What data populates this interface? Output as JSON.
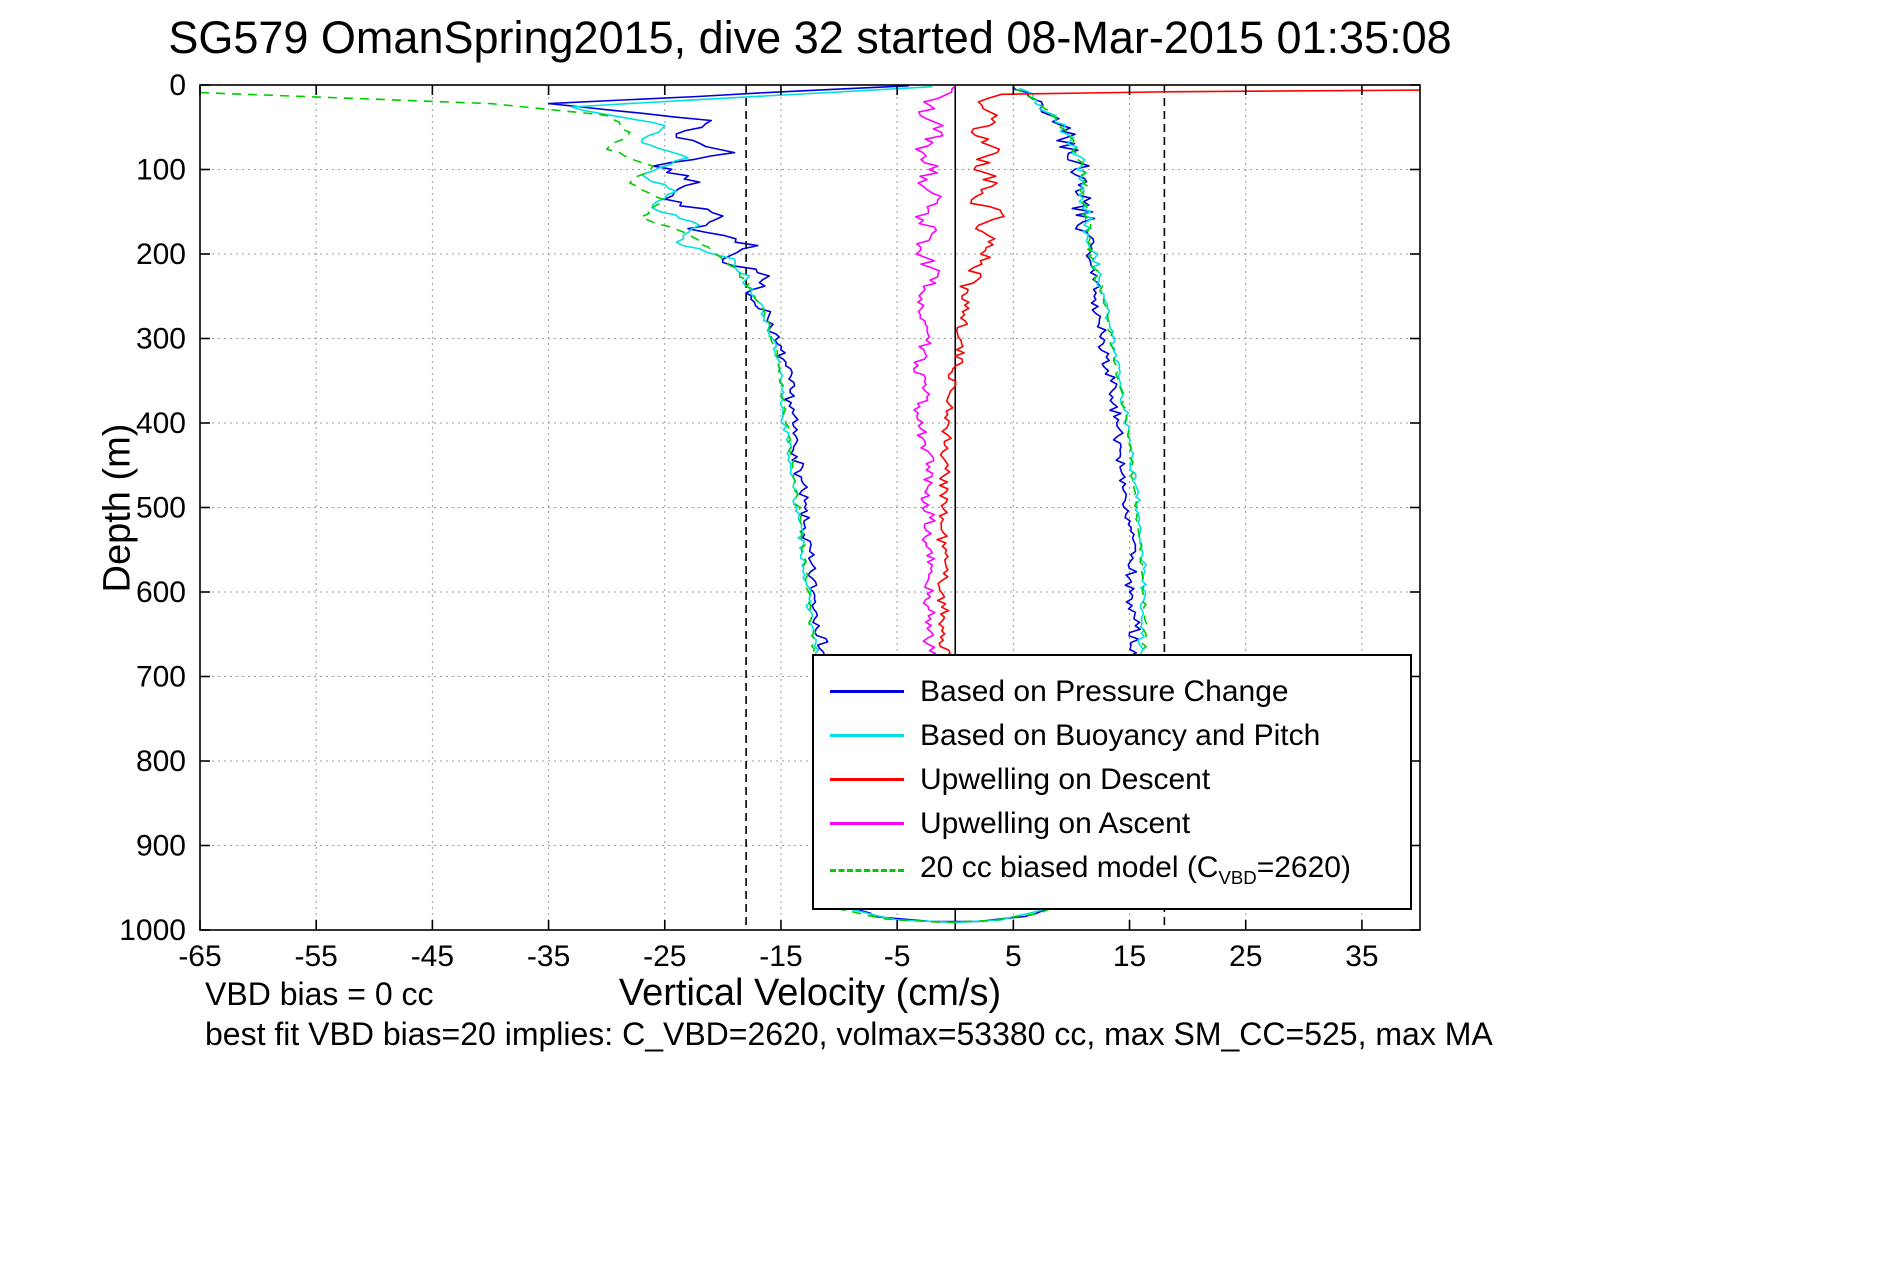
{
  "annotations": {
    "vbd_bias": "VBD bias = 0 cc",
    "best_fit": "best fit VBD bias=20 implies: C_VBD=2620, volmax=53380 cc, max SM_CC=525, max MA"
  },
  "chart_data": {
    "type": "line",
    "title": "SG579 OmanSpring2015, dive 32 started 08-Mar-2015 01:35:08",
    "xlabel": "Vertical Velocity (cm/s)",
    "ylabel": "Depth (m)",
    "xlim": [
      -65,
      40
    ],
    "ylim": [
      0,
      1000
    ],
    "y_inverted": true,
    "grid": "dotted",
    "xticks": [
      -65,
      -55,
      -45,
      -35,
      -25,
      -15,
      -5,
      5,
      15,
      25,
      35
    ],
    "yticks": [
      0,
      100,
      200,
      300,
      400,
      500,
      600,
      700,
      800,
      900,
      1000
    ],
    "ref_lines": [
      {
        "x": -18,
        "style": "dashed"
      },
      {
        "x": 0,
        "style": "solid"
      },
      {
        "x": 18,
        "style": "dashed"
      }
    ],
    "series": [
      {
        "id": "pressure",
        "name": "Based on Pressure Change",
        "color": "#0000dd",
        "dash": false,
        "jitter": 1.0,
        "seed": 7,
        "path": [
          [
            -4,
            1
          ],
          [
            -35,
            22
          ],
          [
            -21,
            42
          ],
          [
            -24,
            62
          ],
          [
            -19,
            80
          ],
          [
            -26,
            96
          ],
          [
            -22,
            115
          ],
          [
            -25,
            135
          ],
          [
            -20,
            155
          ],
          [
            -23,
            170
          ],
          [
            -17,
            190
          ],
          [
            -20,
            206
          ],
          [
            -16,
            226
          ],
          [
            -18,
            246
          ],
          [
            -16,
            272
          ],
          [
            -15.5,
            302
          ],
          [
            -14.6,
            332
          ],
          [
            -14.2,
            364
          ],
          [
            -14,
            400
          ],
          [
            -13.6,
            440
          ],
          [
            -13.2,
            480
          ],
          [
            -13,
            520
          ],
          [
            -12.6,
            560
          ],
          [
            -12.2,
            600
          ],
          [
            -11.7,
            640
          ],
          [
            -11.2,
            678
          ],
          [
            -10.9,
            800
          ],
          [
            -10.5,
            930
          ],
          [
            -10,
            964
          ],
          [
            -7,
            984
          ],
          [
            -2,
            990
          ],
          [
            2,
            990
          ],
          [
            6,
            984
          ],
          [
            10,
            966
          ],
          [
            12,
            944
          ],
          [
            13.5,
            900
          ],
          [
            14.8,
            810
          ],
          [
            15.4,
            720
          ],
          [
            15.3,
            680
          ],
          [
            15.5,
            640
          ],
          [
            15,
            600
          ],
          [
            15.3,
            560
          ],
          [
            14.9,
            520
          ],
          [
            14.5,
            480
          ],
          [
            14.2,
            440
          ],
          [
            13.9,
            400
          ],
          [
            13.5,
            362
          ],
          [
            13,
            322
          ],
          [
            12.4,
            282
          ],
          [
            11.9,
            242
          ],
          [
            11.3,
            202
          ],
          [
            11,
            162
          ],
          [
            11,
            122
          ],
          [
            10.6,
            92
          ],
          [
            9.6,
            62
          ],
          [
            8.2,
            36
          ],
          [
            6.6,
            16
          ],
          [
            5,
            2
          ]
        ]
      },
      {
        "id": "buoyancy",
        "name": "Based on Buoyancy and Pitch",
        "color": "#00e0e0",
        "dash": false,
        "jitter": 0.55,
        "seed": 13,
        "path": [
          [
            -2,
            2
          ],
          [
            -33,
            26
          ],
          [
            -25,
            48
          ],
          [
            -27,
            68
          ],
          [
            -23,
            86
          ],
          [
            -27,
            106
          ],
          [
            -24,
            126
          ],
          [
            -26,
            146
          ],
          [
            -22,
            166
          ],
          [
            -24,
            186
          ],
          [
            -19,
            206
          ],
          [
            -18,
            230
          ],
          [
            -17,
            256
          ],
          [
            -16,
            286
          ],
          [
            -15.5,
            316
          ],
          [
            -15,
            352
          ],
          [
            -14.8,
            392
          ],
          [
            -14.3,
            432
          ],
          [
            -13.9,
            472
          ],
          [
            -13.5,
            512
          ],
          [
            -13.1,
            552
          ],
          [
            -12.8,
            592
          ],
          [
            -12.4,
            632
          ],
          [
            -12,
            672
          ],
          [
            -11.8,
            800
          ],
          [
            -11.2,
            938
          ],
          [
            -10,
            972
          ],
          [
            -5,
            988
          ],
          [
            0,
            991
          ],
          [
            4,
            988
          ],
          [
            8,
            974
          ],
          [
            11,
            954
          ],
          [
            13,
            914
          ],
          [
            14.8,
            830
          ],
          [
            15.8,
            722
          ],
          [
            16,
            672
          ],
          [
            16.1,
            622
          ],
          [
            16.2,
            572
          ],
          [
            15.9,
            522
          ],
          [
            15.5,
            472
          ],
          [
            15.1,
            432
          ],
          [
            14.7,
            392
          ],
          [
            14.2,
            352
          ],
          [
            13.7,
            312
          ],
          [
            13.1,
            272
          ],
          [
            12.4,
            232
          ],
          [
            11.7,
            196
          ],
          [
            11.3,
            162
          ],
          [
            11.1,
            126
          ],
          [
            10.9,
            96
          ],
          [
            9.9,
            66
          ],
          [
            8.6,
            40
          ],
          [
            7,
            18
          ],
          [
            5.5,
            4
          ]
        ]
      },
      {
        "id": "descent-upwelling",
        "name": "Upwelling on Descent",
        "color": "#ff0000",
        "dash": false,
        "jitter": 1.0,
        "seed": 21,
        "path": [
          [
            40,
            6
          ],
          [
            18,
            8
          ],
          [
            4,
            11
          ],
          [
            2,
            20
          ],
          [
            3.6,
            36
          ],
          [
            1.4,
            56
          ],
          [
            3.8,
            76
          ],
          [
            1.8,
            96
          ],
          [
            3.6,
            116
          ],
          [
            1.4,
            136
          ],
          [
            4,
            152
          ],
          [
            2,
            166
          ],
          [
            3.4,
            182
          ],
          [
            2.6,
            196
          ],
          [
            1.6,
            216
          ],
          [
            1.1,
            242
          ],
          [
            0.8,
            272
          ],
          [
            0.5,
            302
          ],
          [
            0.1,
            332
          ],
          [
            -0.4,
            362
          ],
          [
            -0.6,
            402
          ],
          [
            -1,
            442
          ],
          [
            -0.8,
            482
          ],
          [
            -1.2,
            522
          ],
          [
            -0.9,
            562
          ],
          [
            -1.1,
            602
          ],
          [
            -1,
            642
          ],
          [
            -0.9,
            680
          ]
        ]
      },
      {
        "id": "ascent-upwelling",
        "name": "Upwelling on Ascent",
        "color": "#ff00ff",
        "dash": false,
        "jitter": 1.0,
        "seed": 33,
        "path": [
          [
            0,
            1
          ],
          [
            -1.5,
            16
          ],
          [
            -3,
            36
          ],
          [
            -1.2,
            56
          ],
          [
            -3.4,
            76
          ],
          [
            -1.5,
            96
          ],
          [
            -3.2,
            116
          ],
          [
            -1.5,
            136
          ],
          [
            -3.4,
            156
          ],
          [
            -2,
            176
          ],
          [
            -3,
            196
          ],
          [
            -2.1,
            216
          ],
          [
            -2.6,
            242
          ],
          [
            -3,
            272
          ],
          [
            -2.5,
            302
          ],
          [
            -3.2,
            332
          ],
          [
            -2.6,
            362
          ],
          [
            -3.3,
            392
          ],
          [
            -2.6,
            422
          ],
          [
            -2.2,
            452
          ],
          [
            -2.6,
            482
          ],
          [
            -2.2,
            512
          ],
          [
            -2.5,
            542
          ],
          [
            -2.1,
            572
          ],
          [
            -2.4,
            602
          ],
          [
            -2.1,
            632
          ],
          [
            -2.3,
            662
          ],
          [
            -2.1,
            680
          ]
        ]
      },
      {
        "id": "model",
        "name": "20 cc biased model (C_VBD=2620)",
        "color": "#00cc00",
        "dash": true,
        "jitter": 0.4,
        "seed": 41,
        "path": [
          [
            -65,
            9
          ],
          [
            -40,
            22
          ],
          [
            -30,
            36
          ],
          [
            -28,
            56
          ],
          [
            -30,
            76
          ],
          [
            -26,
            96
          ],
          [
            -28,
            116
          ],
          [
            -25,
            136
          ],
          [
            -27,
            156
          ],
          [
            -23,
            176
          ],
          [
            -21,
            196
          ],
          [
            -19,
            216
          ],
          [
            -17.5,
            242
          ],
          [
            -16.5,
            266
          ],
          [
            -15.8,
            296
          ],
          [
            -15.2,
            332
          ],
          [
            -14.8,
            372
          ],
          [
            -14.4,
            412
          ],
          [
            -14,
            452
          ],
          [
            -13.6,
            492
          ],
          [
            -13.2,
            532
          ],
          [
            -12.9,
            572
          ],
          [
            -12.6,
            612
          ],
          [
            -12.3,
            652
          ],
          [
            -12.1,
            680
          ],
          [
            -11.9,
            800
          ],
          [
            -11.4,
            942
          ],
          [
            -10.5,
            974
          ],
          [
            -6,
            987
          ],
          [
            -1,
            991
          ],
          [
            3,
            989
          ],
          [
            7,
            981
          ],
          [
            10.5,
            961
          ],
          [
            12.5,
            939
          ],
          [
            14,
            904
          ],
          [
            15.5,
            820
          ],
          [
            16.2,
            730
          ],
          [
            16.2,
            680
          ],
          [
            16.3,
            630
          ],
          [
            16.1,
            580
          ],
          [
            15.8,
            530
          ],
          [
            15.5,
            482
          ],
          [
            15.1,
            442
          ],
          [
            14.7,
            402
          ],
          [
            14.3,
            362
          ],
          [
            13.7,
            322
          ],
          [
            13.1,
            282
          ],
          [
            12.5,
            242
          ],
          [
            11.9,
            206
          ],
          [
            11.4,
            172
          ],
          [
            11.1,
            136
          ],
          [
            10.9,
            100
          ],
          [
            10.1,
            70
          ],
          [
            8.9,
            46
          ],
          [
            7.2,
            20
          ],
          [
            5.2,
            5
          ]
        ]
      }
    ],
    "legend": {
      "position": "inside-bottom-right",
      "items": [
        {
          "series": 0,
          "label": "Based on Pressure Change"
        },
        {
          "series": 1,
          "label": "Based on Buoyancy and Pitch"
        },
        {
          "series": 2,
          "label": "Upwelling on Descent"
        },
        {
          "series": 3,
          "label": "Upwelling on Ascent"
        },
        {
          "series": 4,
          "label_prefix": "20 cc biased model (C",
          "label_sub": "VBD",
          "label_suffix": "=2620)"
        }
      ]
    }
  }
}
